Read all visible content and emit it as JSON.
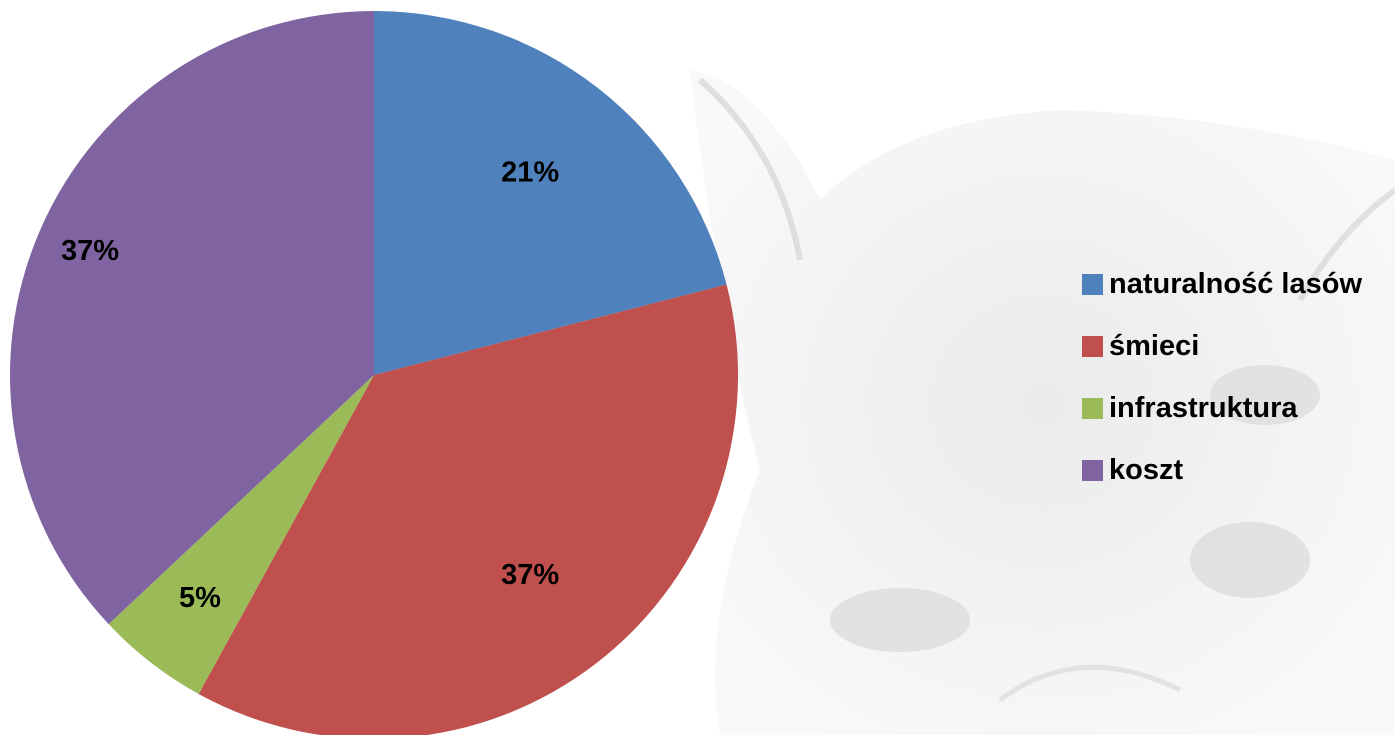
{
  "chart_data": {
    "type": "pie",
    "categories": [
      "naturalność lasów",
      "śmieci",
      "infrastruktura",
      "koszt"
    ],
    "values": [
      21,
      37,
      5,
      37
    ],
    "data_labels": [
      "21%",
      "37%",
      "5%",
      "37%"
    ],
    "colors": [
      "#4f81bd",
      "#c0504d",
      "#9bbb59",
      "#8064a2"
    ],
    "start_angle": "12 o'clock",
    "direction": "clockwise",
    "legend_position": "right",
    "title": ""
  },
  "legend": {
    "items": [
      {
        "label": "naturalność lasów",
        "color": "#4f81bd"
      },
      {
        "label": "śmieci",
        "color": "#c0504d"
      },
      {
        "label": "infrastruktura",
        "color": "#9bbb59"
      },
      {
        "label": "koszt",
        "color": "#8064a2"
      }
    ]
  },
  "background": {
    "description_icon": "lynx-watermark"
  }
}
